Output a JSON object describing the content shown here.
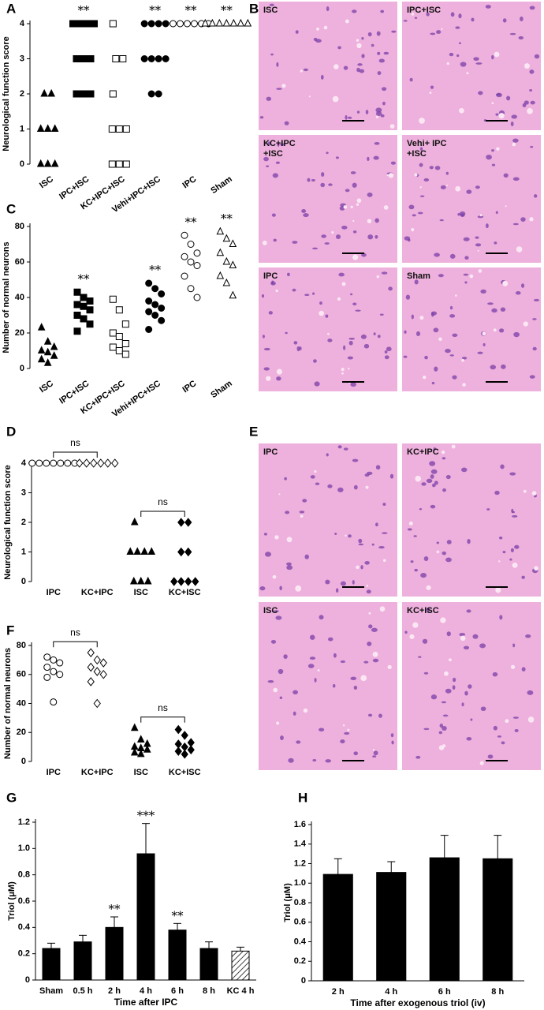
{
  "chart_data": [
    {
      "type": "dot",
      "letter": "A",
      "ylabel": "Neurological function score",
      "categories": [
        "ISC",
        "IPC+ISC",
        "KC+IPC+ISC",
        "Vehi+IPC+ISC",
        "IPC",
        "Sham"
      ],
      "markers": [
        {
          "shape": "triangle",
          "filled": true
        },
        {
          "shape": "square",
          "filled": true
        },
        {
          "shape": "square",
          "filled": false
        },
        {
          "shape": "circle",
          "filled": true
        },
        {
          "shape": "circle",
          "filled": false
        },
        {
          "shape": "triangle",
          "filled": false
        }
      ],
      "points": [
        [
          2,
          2,
          1,
          1,
          1,
          0,
          0,
          0
        ],
        [
          4,
          4,
          4,
          4,
          3,
          3,
          3,
          2,
          2,
          2
        ],
        [
          4,
          3,
          3,
          2,
          1,
          1,
          1,
          0,
          0,
          0
        ],
        [
          4,
          4,
          4,
          4,
          3,
          3,
          3,
          3,
          2,
          2
        ],
        [
          4,
          4,
          4,
          4,
          4,
          4
        ],
        [
          4,
          4,
          4,
          4,
          4,
          4,
          4
        ]
      ],
      "annotations": [
        null,
        "**",
        null,
        "**",
        "**",
        "**"
      ],
      "ylim": [
        0,
        4
      ],
      "yticks": [
        0,
        1,
        2,
        3,
        4
      ]
    },
    {
      "type": "dot",
      "letter": "C",
      "ylabel": "Number of normal neurons",
      "categories": [
        "ISC",
        "IPC+ISC",
        "KC+IPC+ISC",
        "Vehi+IPC+ISC",
        "IPC",
        "Sham"
      ],
      "markers": [
        {
          "shape": "triangle",
          "filled": true
        },
        {
          "shape": "square",
          "filled": true
        },
        {
          "shape": "square",
          "filled": false
        },
        {
          "shape": "circle",
          "filled": true
        },
        {
          "shape": "circle",
          "filled": false
        },
        {
          "shape": "triangle",
          "filled": false
        }
      ],
      "points": [
        [
          23,
          15,
          12,
          10,
          9,
          7,
          5,
          3
        ],
        [
          43,
          40,
          38,
          36,
          35,
          33,
          30,
          28,
          25,
          21
        ],
        [
          39,
          33,
          25,
          20,
          18,
          14,
          12,
          10,
          8
        ],
        [
          48,
          45,
          42,
          38,
          36,
          34,
          32,
          30,
          27,
          22
        ],
        [
          75,
          70,
          65,
          63,
          60,
          58,
          52,
          45,
          40
        ],
        [
          77,
          73,
          70,
          65,
          60,
          58,
          52,
          48,
          41
        ]
      ],
      "annotations": [
        null,
        "**",
        null,
        "**",
        "**",
        "**"
      ],
      "ylim": [
        0,
        80
      ],
      "yticks": [
        0,
        20,
        40,
        60,
        80
      ]
    },
    {
      "type": "dot",
      "letter": "D",
      "ylabel": "Neurological function score",
      "categories": [
        "IPC",
        "KC+IPC",
        "ISC",
        "KC+ISC"
      ],
      "markers": [
        {
          "shape": "circle",
          "filled": false
        },
        {
          "shape": "diamond",
          "filled": false
        },
        {
          "shape": "triangle",
          "filled": true
        },
        {
          "shape": "diamond",
          "filled": true
        }
      ],
      "points": [
        [
          4,
          4,
          4,
          4,
          4,
          4,
          4
        ],
        [
          4,
          4,
          4,
          4,
          4,
          4
        ],
        [
          2,
          1,
          1,
          1,
          1,
          0,
          0,
          0
        ],
        [
          2,
          2,
          1,
          1,
          0,
          0,
          0,
          0
        ]
      ],
      "comparisons": [
        {
          "groups": [
            0,
            1
          ],
          "label": "ns"
        },
        {
          "groups": [
            2,
            3
          ],
          "label": "ns"
        }
      ],
      "ylim": [
        0,
        4
      ],
      "yticks": [
        0,
        1,
        2,
        3,
        4
      ]
    },
    {
      "type": "dot",
      "letter": "F",
      "ylabel": "Number of normal neurons",
      "categories": [
        "IPC",
        "KC+IPC",
        "ISC",
        "KC+ISC"
      ],
      "markers": [
        {
          "shape": "circle",
          "filled": false
        },
        {
          "shape": "diamond",
          "filled": false
        },
        {
          "shape": "triangle",
          "filled": true
        },
        {
          "shape": "diamond",
          "filled": true
        }
      ],
      "points": [
        [
          72,
          70,
          68,
          65,
          62,
          60,
          58,
          41
        ],
        [
          75,
          70,
          68,
          65,
          62,
          60,
          55,
          40
        ],
        [
          23,
          15,
          12,
          10,
          9,
          8,
          6,
          5
        ],
        [
          22,
          18,
          13,
          12,
          10,
          8,
          7,
          5
        ]
      ],
      "comparisons": [
        {
          "groups": [
            0,
            1
          ],
          "label": "ns"
        },
        {
          "groups": [
            2,
            3
          ],
          "label": "ns"
        }
      ],
      "ylim": [
        0,
        80
      ],
      "yticks": [
        0,
        20,
        40,
        60,
        80
      ]
    },
    {
      "type": "bar",
      "letter": "G",
      "ylabel": "Triol (μM)",
      "xlabel": "Time after IPC",
      "categories": [
        "Sham",
        "0.5 h",
        "2 h",
        "4 h",
        "6 h",
        "8 h",
        "KC 4 h"
      ],
      "values": [
        0.24,
        0.29,
        0.4,
        0.96,
        0.38,
        0.24,
        0.22
      ],
      "errors": [
        0.04,
        0.05,
        0.08,
        0.23,
        0.05,
        0.05,
        0.03
      ],
      "hatched": [
        false,
        false,
        false,
        false,
        false,
        false,
        true
      ],
      "annotations": [
        null,
        null,
        "**",
        "***",
        "**",
        null,
        null
      ],
      "color": "#000000",
      "ylim": [
        0,
        1.2
      ],
      "yticks": [
        0,
        0.2,
        0.4,
        0.6,
        0.8,
        {
          "value": 1.0,
          "label": "1.0"
        },
        1.2
      ]
    },
    {
      "type": "bar",
      "letter": "H",
      "ylabel": "Triol (μM)",
      "xlabel": "Time after exogenous triol (iv)",
      "categories": [
        "2 h",
        "4 h",
        "6 h",
        "8 h"
      ],
      "values": [
        1.09,
        1.11,
        1.26,
        1.25
      ],
      "errors": [
        0.16,
        0.11,
        0.23,
        0.24
      ],
      "hatched": [
        false,
        false,
        false,
        false
      ],
      "color": "#000000",
      "ylim": [
        0,
        1.6
      ],
      "yticks": [
        0,
        0.2,
        0.4,
        0.6,
        0.8,
        {
          "value": 1.0,
          "label": "1.0"
        },
        1.2,
        1.4,
        1.6
      ]
    }
  ],
  "micrographs": [
    {
      "letter": "B",
      "panels": [
        {
          "label": [
            "ISC"
          ]
        },
        {
          "label": [
            "IPC+ISC"
          ]
        },
        {
          "label": [
            "KC+IPC",
            "+ISC"
          ]
        },
        {
          "label": [
            "Vehi+ IPC",
            "+ISC"
          ]
        },
        {
          "label": [
            "IPC"
          ]
        },
        {
          "label": [
            "Sham"
          ]
        }
      ]
    },
    {
      "letter": "E",
      "panels": [
        {
          "label": [
            "IPC"
          ]
        },
        {
          "label": [
            "KC+IPC"
          ]
        },
        {
          "label": [
            "ISC"
          ]
        },
        {
          "label": [
            "KC+ISC"
          ]
        }
      ]
    }
  ]
}
